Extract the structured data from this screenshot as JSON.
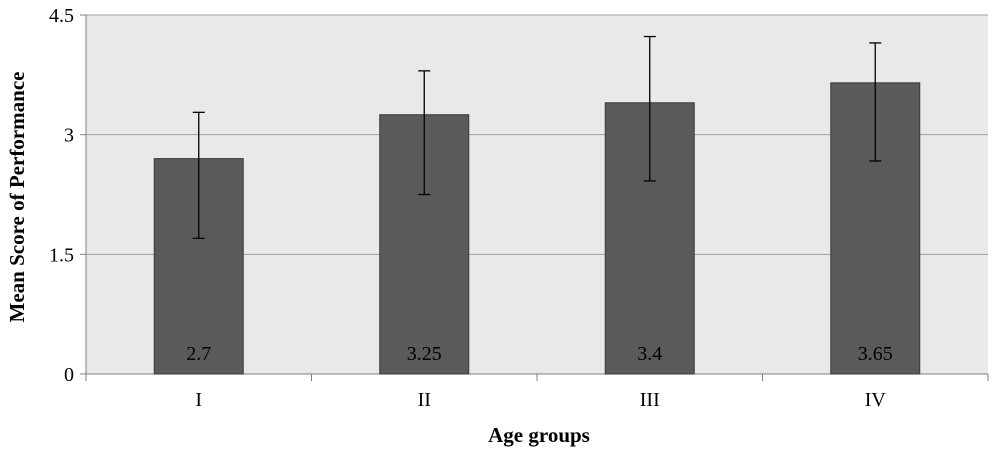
{
  "chart_data": {
    "type": "bar",
    "title": "",
    "xlabel": "Age groups",
    "ylabel": "Mean Score of Performance",
    "categories": [
      "I",
      "II",
      "III",
      "IV"
    ],
    "values": [
      2.7,
      3.25,
      3.4,
      3.65
    ],
    "data_labels": [
      "2.7",
      "3.25",
      "3.4",
      "3.65"
    ],
    "error_bars": [
      {
        "low": 1.7,
        "high": 3.28
      },
      {
        "low": 2.25,
        "high": 3.8
      },
      {
        "low": 2.42,
        "high": 4.23
      },
      {
        "low": 2.67,
        "high": 4.15
      }
    ],
    "ylim": [
      0,
      4.5
    ],
    "yticks": [
      0,
      1.5,
      3,
      4.5
    ],
    "ytick_labels": [
      "0",
      "1.5",
      "3",
      "4.5"
    ],
    "grid": true,
    "legend": "none",
    "colors": {
      "bar": "#5a5a5a",
      "bar_edge": "#3a3a3a",
      "plot_bg": "#e9e9e9",
      "grid": "#9e9e9e",
      "axis": "#808080",
      "error_bar": "#000000"
    }
  }
}
